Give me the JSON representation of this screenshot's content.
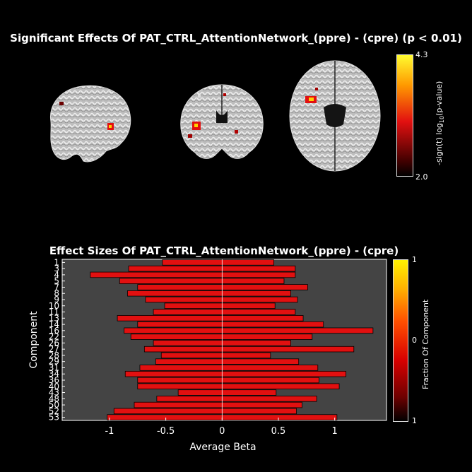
{
  "brain_panel": {
    "title": "Significant Effects Of PAT_CTRL_AttentionNetwork_(ppre) - (cpre) (p < 0.01)",
    "colorbar": {
      "max": "4.3",
      "min": "2.0",
      "label_main": "-sign(t) log",
      "label_sub": "10",
      "label_tail": "(p-value)",
      "colors": [
        "#fdfdfd",
        "#fff000",
        "#ff8800",
        "#e21010",
        "#000000"
      ]
    },
    "views": [
      "sagittal",
      "coronal",
      "axial"
    ]
  },
  "chart_data": {
    "type": "bar",
    "orientation": "horizontal",
    "title": "Effect Sizes Of PAT_CTRL_AttentionNetwork_(ppre) - (cpre)",
    "xlabel": "Average Beta",
    "ylabel": "Component",
    "xlim": [
      -1.42,
      1.46
    ],
    "xticks": [
      -1,
      -0.5,
      0,
      0.5,
      1
    ],
    "xtick_labels": [
      "-1",
      "-0.5",
      "0",
      "0.5",
      "1"
    ],
    "categories": [
      "1",
      "3",
      "4",
      "5",
      "7",
      "8",
      "9",
      "10",
      "11",
      "13",
      "14",
      "16",
      "22",
      "26",
      "27",
      "28",
      "29",
      "31",
      "34",
      "36",
      "40",
      "43",
      "48",
      "50",
      "52",
      "53"
    ],
    "ytick_labels": [
      "1",
      "3",
      "4",
      "5",
      "7",
      "8",
      "9",
      "10",
      "11",
      "13",
      "14",
      "16",
      "22",
      "26",
      "27",
      "28",
      "29",
      "31",
      "34",
      "36",
      "40",
      "43",
      "48",
      "50",
      "52",
      "53"
    ],
    "bars": [
      {
        "left": -0.53,
        "right": 0.46
      },
      {
        "left": -0.83,
        "right": 0.65
      },
      {
        "left": -1.17,
        "right": 0.65
      },
      {
        "left": -0.91,
        "right": 0.55
      },
      {
        "left": -0.75,
        "right": 0.76
      },
      {
        "left": -0.84,
        "right": 0.61
      },
      {
        "left": -0.68,
        "right": 0.67
      },
      {
        "left": -0.51,
        "right": 0.47
      },
      {
        "left": -0.61,
        "right": 0.65
      },
      {
        "left": -0.93,
        "right": 0.72
      },
      {
        "left": -0.75,
        "right": 0.9
      },
      {
        "left": -0.87,
        "right": 1.34
      },
      {
        "left": -0.81,
        "right": 0.8
      },
      {
        "left": -0.61,
        "right": 0.61
      },
      {
        "left": -0.69,
        "right": 1.17
      },
      {
        "left": -0.54,
        "right": 0.43
      },
      {
        "left": -0.59,
        "right": 0.68
      },
      {
        "left": -0.73,
        "right": 0.85
      },
      {
        "left": -0.86,
        "right": 1.1
      },
      {
        "left": -0.75,
        "right": 0.86
      },
      {
        "left": -0.75,
        "right": 1.04
      },
      {
        "left": -0.39,
        "right": 0.48
      },
      {
        "left": -0.58,
        "right": 0.84
      },
      {
        "left": -0.78,
        "right": 0.71
      },
      {
        "left": -0.96,
        "right": 0.66
      },
      {
        "left": -1.02,
        "right": 1.02
      }
    ],
    "bar_color": "#e21010",
    "background": "#444444",
    "grid": false,
    "colorbar": {
      "label": "Fraction Of Component",
      "tick_labels": [
        "1",
        "0",
        "1"
      ],
      "colors": [
        "#fff200",
        "#ff7a00",
        "#e00000",
        "#6e0000",
        "#000000"
      ]
    }
  }
}
